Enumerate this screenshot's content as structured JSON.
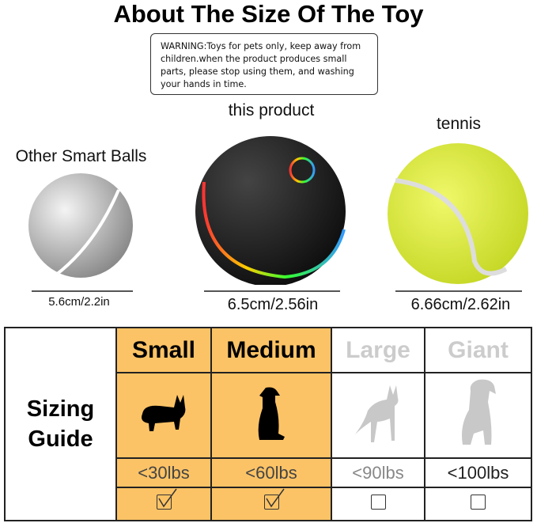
{
  "title": "About The Size Of The Toy",
  "warning": "WARNING:Toys for pets only, keep away from children.when the product produces small parts, please stop using them, and washing your hands in time.",
  "balls": [
    {
      "label": "Other Smart Balls",
      "size": "5.6cm/2.2in"
    },
    {
      "label": "this product",
      "size": "6.5cm/2.56in"
    },
    {
      "label": "tennis",
      "size": "6.66cm/2.62in"
    }
  ],
  "guide": {
    "label_line1": "Sizing",
    "label_line2": "Guide",
    "sizes": [
      {
        "name": "Small",
        "weight": "<30lbs",
        "checked": true,
        "icon": "corgi-silhouette-icon"
      },
      {
        "name": "Medium",
        "weight": "<60lbs",
        "checked": true,
        "icon": "sitting-dog-silhouette-icon"
      },
      {
        "name": "Large",
        "weight": "<90lbs",
        "checked": false,
        "icon": "shepherd-silhouette-icon"
      },
      {
        "name": "Giant",
        "weight": "<100lbs",
        "checked": false,
        "icon": "large-dog-silhouette-icon"
      }
    ],
    "highlight": "#fcc366"
  }
}
